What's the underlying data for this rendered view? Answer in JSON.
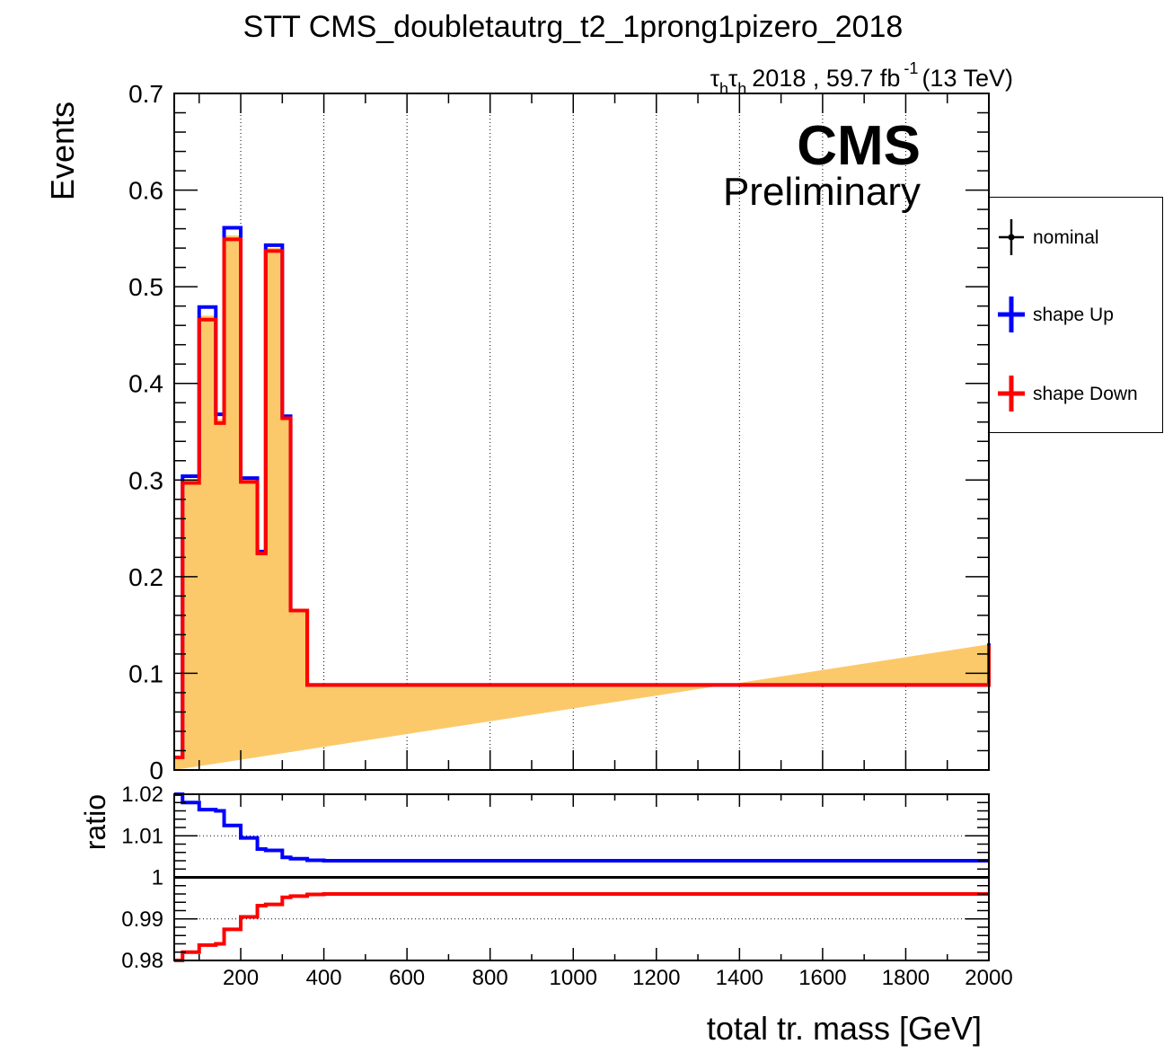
{
  "chart_data": [
    {
      "type": "line",
      "title": "STT CMS_doubletautrg_t2_1prong1pizero_2018",
      "lumi_label": {
        "channel": "τhτh",
        "channel_base": "τ",
        "channel_sub": "h",
        "text": "2018 , 59.7 fb",
        "sup": "-1",
        "energy": "(13 TeV)"
      },
      "cms_label": "CMS",
      "cms_sublabel": "Preliminary",
      "ylabel": "Events",
      "xlim": [
        40,
        2000
      ],
      "ylim": [
        0,
        0.7
      ],
      "yticks": [
        "0",
        "0.1",
        "0.2",
        "0.3",
        "0.4",
        "0.5",
        "0.6",
        "0.7"
      ],
      "ytick_values": [
        0,
        0.1,
        0.2,
        0.3,
        0.4,
        0.5,
        0.6,
        0.7
      ],
      "grid_x": [
        200,
        400,
        600,
        800,
        1000,
        1200,
        1400,
        1600,
        1800
      ],
      "bin_edges": [
        40,
        60,
        80,
        100,
        120,
        140,
        160,
        180,
        200,
        220,
        240,
        260,
        280,
        300,
        320,
        340,
        360,
        400,
        2000
      ],
      "series": [
        {
          "name": "nominal",
          "color": "#fcc96a",
          "values": [
            0.013,
            0.3,
            0.3,
            0.47,
            0.47,
            0.363,
            0.553,
            0.553,
            0.3,
            0.3,
            0.225,
            0.54,
            0.54,
            0.365,
            0.165,
            0.165,
            0.088,
            0.088,
            0.13
          ]
        },
        {
          "name": "shape Up",
          "color": "#0000ff",
          "values": [
            0.013,
            0.304,
            0.304,
            0.479,
            0.479,
            0.368,
            0.561,
            0.561,
            0.302,
            0.302,
            0.226,
            0.543,
            0.543,
            0.366,
            0.165,
            0.165,
            0.088,
            0.088,
            0.131
          ]
        },
        {
          "name": "shape Down",
          "color": "#ff0000",
          "values": [
            0.013,
            0.297,
            0.297,
            0.466,
            0.466,
            0.359,
            0.549,
            0.549,
            0.298,
            0.298,
            0.224,
            0.537,
            0.537,
            0.364,
            0.165,
            0.165,
            0.088,
            0.088,
            0.129
          ]
        }
      ],
      "legend": {
        "placement": "right",
        "entries": [
          {
            "label": "nominal",
            "color": "#000000",
            "marker": "point-cross"
          },
          {
            "label": "shape Up",
            "color": "#0000ff",
            "marker": "cross"
          },
          {
            "label": "shape Down",
            "color": "#ff0000",
            "marker": "cross"
          }
        ]
      }
    },
    {
      "type": "line",
      "ylabel": "ratio",
      "xlabel": "total tr. mass [GeV]",
      "xlim": [
        40,
        2000
      ],
      "ylim": [
        0.98,
        1.02
      ],
      "yticks": [
        "0.98",
        "0.99",
        "1",
        "1.01",
        "1.02"
      ],
      "ytick_values": [
        0.98,
        0.99,
        1.0,
        1.01,
        1.02
      ],
      "xticks": [
        "200",
        "400",
        "600",
        "800",
        "1000",
        "1200",
        "1400",
        "1600",
        "1800",
        "2000"
      ],
      "xtick_values": [
        200,
        400,
        600,
        800,
        1000,
        1200,
        1400,
        1600,
        1800,
        2000
      ],
      "grid_y": [
        0.99,
        1.01
      ],
      "reference_line": 1.0,
      "bin_edges": [
        40,
        60,
        80,
        100,
        120,
        140,
        160,
        180,
        200,
        220,
        240,
        260,
        280,
        300,
        320,
        340,
        360,
        400,
        2000
      ],
      "series": [
        {
          "name": "shape Up",
          "color": "#0000ff",
          "values": [
            1.02,
            1.018,
            1.018,
            1.0163,
            1.0163,
            1.016,
            1.0125,
            1.0125,
            1.0095,
            1.0095,
            1.0068,
            1.0065,
            1.0065,
            1.0048,
            1.0045,
            1.0045,
            1.0041,
            1.004,
            1.004
          ]
        },
        {
          "name": "shape Down",
          "color": "#ff0000",
          "values": [
            0.98,
            0.982,
            0.982,
            0.9837,
            0.9837,
            0.984,
            0.9875,
            0.9875,
            0.9905,
            0.9905,
            0.9932,
            0.9935,
            0.9935,
            0.9952,
            0.9955,
            0.9955,
            0.9959,
            0.996,
            0.996
          ]
        }
      ]
    }
  ]
}
